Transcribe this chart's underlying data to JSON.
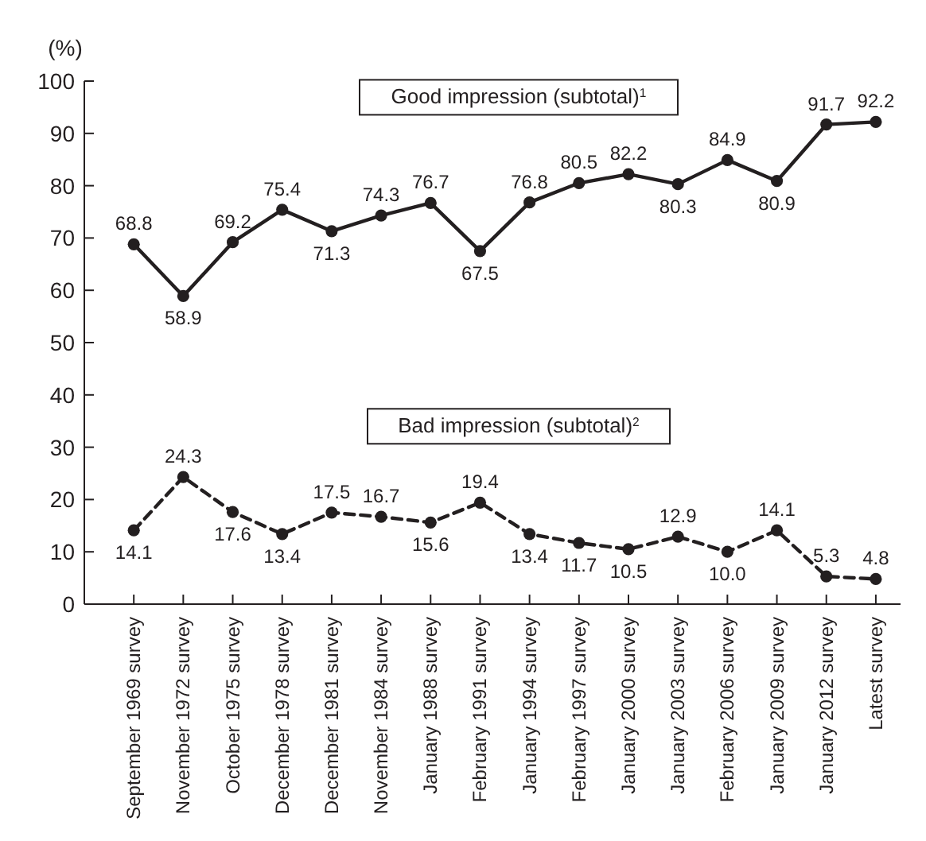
{
  "chart_data": {
    "type": "line",
    "ylabel": "(%)",
    "categories": [
      "September 1969 survey",
      "November 1972 survey",
      "October 1975 survey",
      "December 1978 survey",
      "December 1981 survey",
      "November 1984 survey",
      "January 1988 survey",
      "February 1991 survey",
      "January 1994 survey",
      "February 1997 survey",
      "January 2000 survey",
      "January 2003 survey",
      "February 2006 survey",
      "January 2009 survey",
      "January 2012 survey",
      "Latest survey"
    ],
    "series": [
      {
        "name": "Good impression (subtotal)$^{1}$",
        "color": "#231f20",
        "line_style": "solid",
        "values": [
          68.8,
          58.9,
          69.2,
          75.4,
          71.3,
          74.3,
          76.7,
          67.5,
          76.8,
          80.5,
          82.2,
          80.3,
          84.9,
          80.9,
          91.7,
          92.2
        ],
        "value_labels": [
          "68.8",
          "58.9",
          "69.2",
          "75.4",
          "71.3",
          "74.3",
          "76.7",
          "67.5",
          "76.8",
          "80.5",
          "82.2",
          "80.3",
          "84.9",
          "80.9",
          "91.7",
          "92.2"
        ]
      },
      {
        "name": "Bad impression (subtotal)$^{2}$",
        "color": "#231f20",
        "line_style": "dashed",
        "values": [
          14.1,
          24.3,
          17.6,
          13.4,
          17.5,
          16.7,
          15.6,
          19.4,
          13.4,
          11.7,
          10.5,
          12.9,
          10.0,
          14.1,
          5.3,
          4.8
        ],
        "value_labels": [
          "14.1",
          "24.3",
          "17.6",
          "13.4",
          "17.5",
          "16.7",
          "15.6",
          "19.4",
          "13.4",
          "11.7",
          "10.5",
          "12.9",
          "10.0",
          "14.1",
          "5.3",
          "4.8"
        ]
      }
    ],
    "ylim": [
      0,
      100
    ],
    "yticks": [
      0,
      10,
      20,
      30,
      40,
      50,
      60,
      70,
      80,
      90,
      100
    ],
    "marker": "circle"
  }
}
